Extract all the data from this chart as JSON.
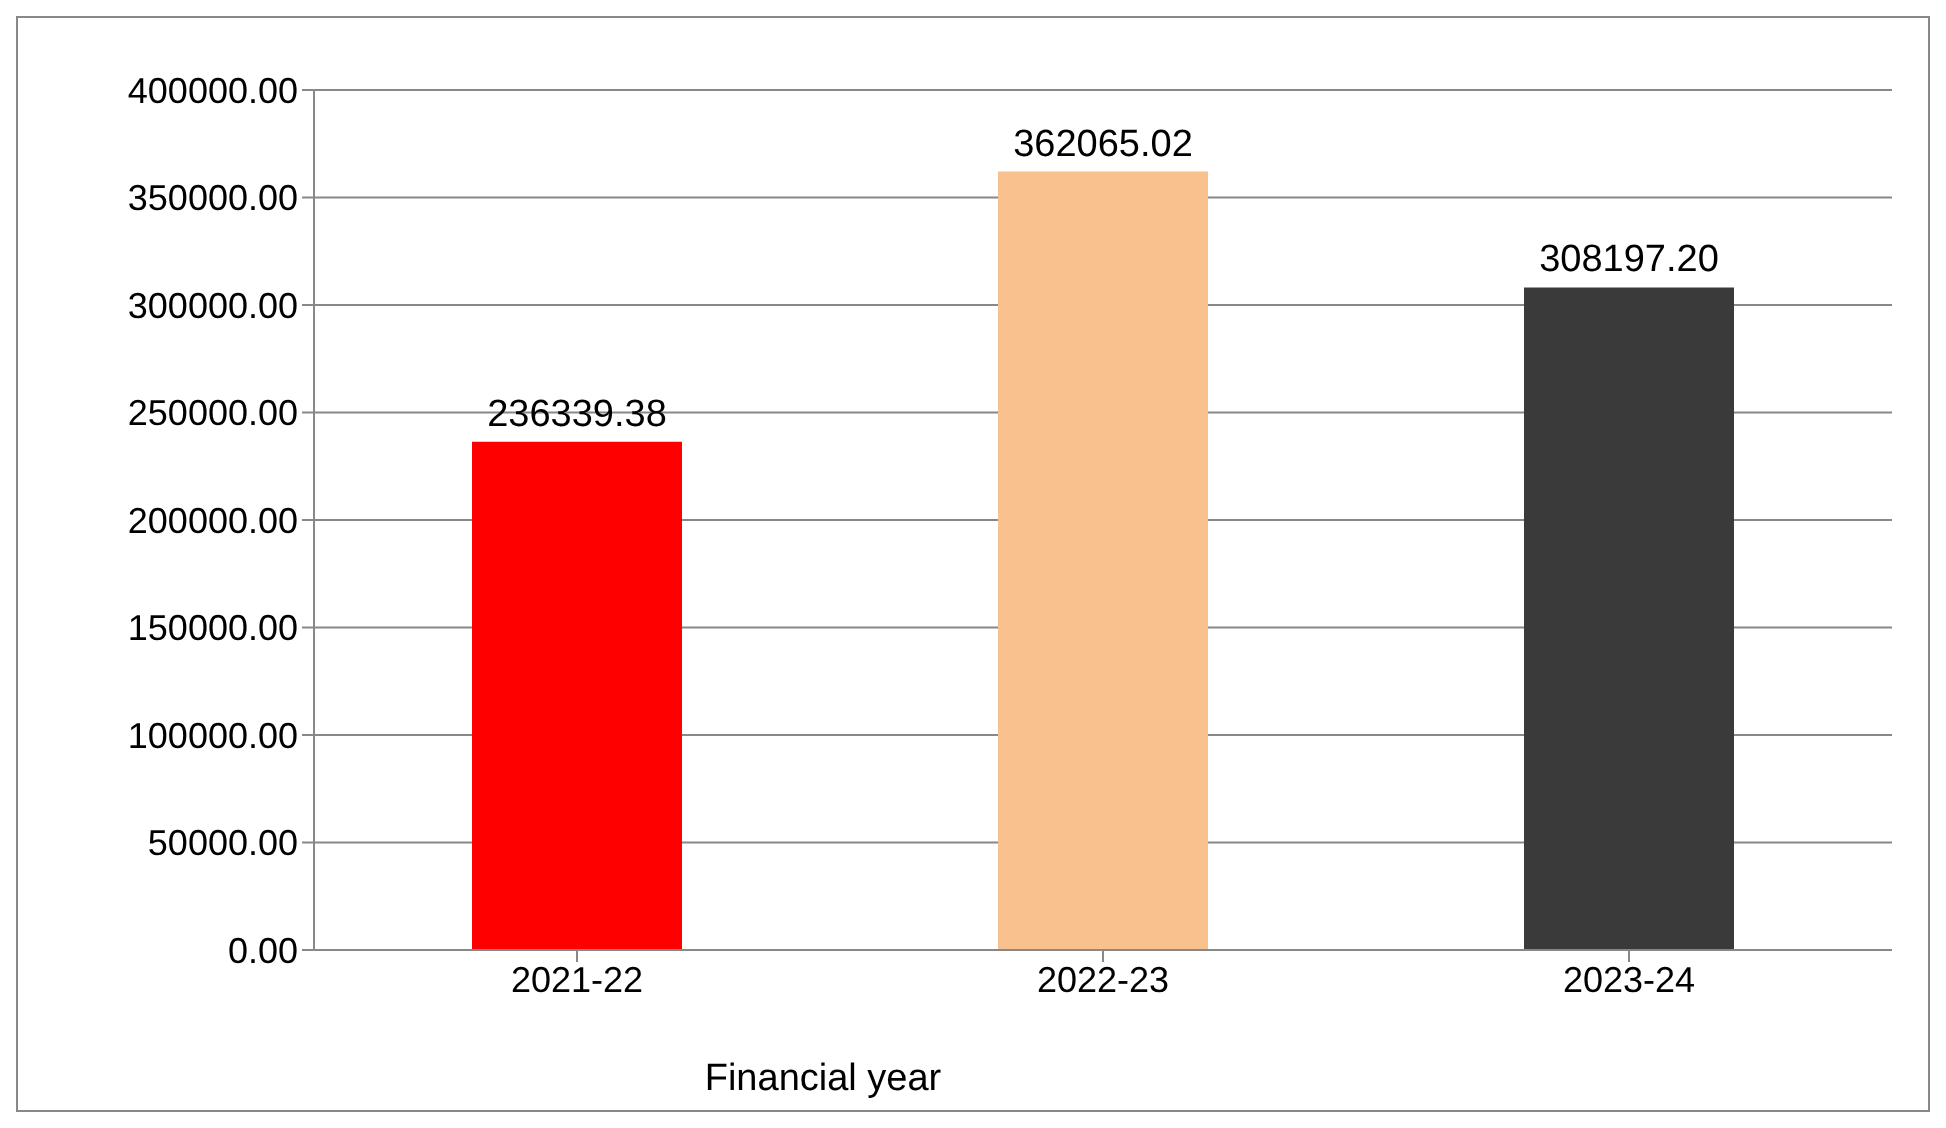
{
  "chart_data": {
    "type": "bar",
    "xlabel": "Financial year",
    "categories": [
      "2021-22",
      "2022-23",
      "2023-24"
    ],
    "values": [
      236339.38,
      362065.02,
      308197.2
    ],
    "colors": [
      "#ff0000",
      "#f9c18e",
      "#3a3a3a"
    ],
    "value_labels": [
      "236339.38",
      "362065.02",
      "308197.20"
    ],
    "ylim": [
      0,
      400000
    ],
    "yticks": [
      {
        "value": 0,
        "label": "0.00"
      },
      {
        "value": 50000,
        "label": "50000.00"
      },
      {
        "value": 100000,
        "label": "100000.00"
      },
      {
        "value": 150000,
        "label": "150000.00"
      },
      {
        "value": 200000,
        "label": "200000.00"
      },
      {
        "value": 250000,
        "label": "250000.00"
      },
      {
        "value": 300000,
        "label": "300000.00"
      },
      {
        "value": 350000,
        "label": "350000.00"
      },
      {
        "value": 400000,
        "label": "400000.00"
      }
    ],
    "grid": "y",
    "legend": false
  }
}
